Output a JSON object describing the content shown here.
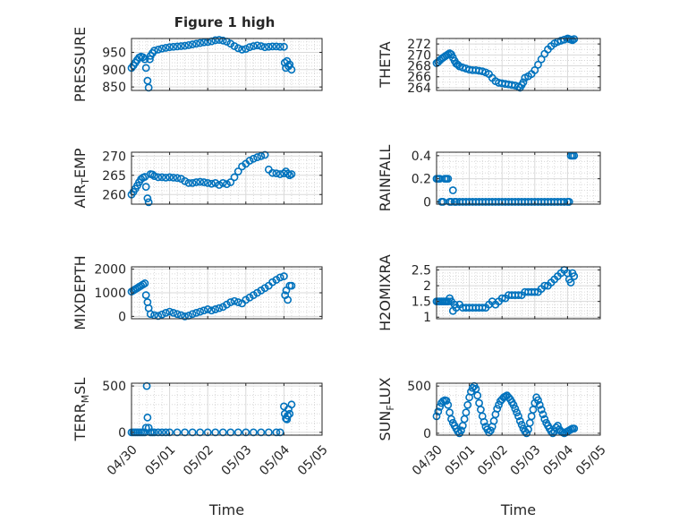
{
  "figure": {
    "title": "Figure 1 high"
  },
  "chart_data": [
    {
      "id": "pressure",
      "type": "scatter",
      "ylabel": "PRESSURE",
      "ylabel_sub": "",
      "ylim": [
        840,
        990
      ],
      "yticks": [
        850,
        900,
        950
      ],
      "yminor": [
        860,
        870,
        880,
        890,
        910,
        920,
        930,
        940,
        960,
        970,
        980
      ],
      "xlim": [
        0,
        5
      ],
      "xticks": [],
      "xlabel": "",
      "grid": true,
      "x": [
        0.0,
        0.05,
        0.1,
        0.15,
        0.2,
        0.25,
        0.3,
        0.35,
        0.38,
        0.42,
        0.45,
        0.48,
        0.5,
        0.55,
        0.6,
        0.7,
        0.8,
        0.9,
        1.0,
        1.1,
        1.2,
        1.3,
        1.4,
        1.5,
        1.6,
        1.7,
        1.8,
        1.9,
        2.0,
        2.1,
        2.2,
        2.3,
        2.4,
        2.5,
        2.6,
        2.7,
        2.8,
        2.9,
        3.0,
        3.1,
        3.2,
        3.3,
        3.4,
        3.5,
        3.6,
        3.7,
        3.8,
        3.9,
        4.0,
        4.02,
        4.05,
        4.08,
        4.12,
        4.15,
        4.2
      ],
      "y": [
        905,
        912,
        920,
        928,
        935,
        938,
        936,
        930,
        905,
        868,
        848,
        930,
        940,
        948,
        955,
        958,
        961,
        963,
        965,
        966,
        967,
        968,
        969,
        971,
        973,
        975,
        977,
        979,
        980,
        982,
        985,
        986,
        984,
        981,
        975,
        968,
        962,
        958,
        960,
        965,
        968,
        970,
        968,
        965,
        966,
        967,
        967,
        966,
        966,
        920,
        905,
        925,
        910,
        915,
        900
      ]
    },
    {
      "id": "theta",
      "type": "scatter",
      "ylabel": "THETA",
      "ylabel_sub": "",
      "ylim": [
        263.5,
        273
      ],
      "yticks": [
        264,
        266,
        268,
        270,
        272
      ],
      "yminor": [
        265,
        267,
        269,
        271
      ],
      "xlim": [
        0,
        5
      ],
      "xticks": [],
      "xlabel": "",
      "grid": true,
      "x": [
        0.0,
        0.05,
        0.1,
        0.15,
        0.2,
        0.25,
        0.3,
        0.35,
        0.4,
        0.45,
        0.5,
        0.55,
        0.6,
        0.65,
        0.7,
        0.8,
        0.9,
        1.0,
        1.1,
        1.2,
        1.3,
        1.4,
        1.5,
        1.6,
        1.7,
        1.8,
        1.9,
        2.0,
        2.1,
        2.2,
        2.3,
        2.4,
        2.5,
        2.55,
        2.6,
        2.65,
        2.7,
        2.8,
        2.9,
        3.0,
        3.1,
        3.2,
        3.3,
        3.4,
        3.5,
        3.6,
        3.7,
        3.8,
        3.9,
        4.0,
        4.05,
        4.1,
        4.15,
        4.2
      ],
      "y": [
        268.5,
        268.7,
        269,
        269.3,
        269.5,
        269.7,
        269.9,
        270.1,
        270.3,
        270.1,
        269.5,
        268.9,
        268.4,
        268.2,
        267.9,
        267.7,
        267.5,
        267.3,
        267.2,
        267.2,
        267.1,
        267,
        266.8,
        266.5,
        265.8,
        265.2,
        264.9,
        264.8,
        264.7,
        264.6,
        264.5,
        264.4,
        264.2,
        264,
        264.5,
        265,
        265.8,
        266.1,
        266.5,
        267.2,
        268.2,
        269.2,
        270.2,
        271,
        271.6,
        272.1,
        272.4,
        272.6,
        272.8,
        273,
        272.9,
        272.8,
        272.7,
        272.9
      ]
    },
    {
      "id": "air_temp",
      "type": "scatter",
      "ylabel": "AIR",
      "ylabel_sub": "T",
      "ylabel_rest": "EMP",
      "ylim": [
        257.5,
        271
      ],
      "yticks": [
        260,
        265,
        270
      ],
      "yminor": [
        261,
        262,
        263,
        264,
        266,
        267,
        268,
        269
      ],
      "xlim": [
        0,
        5
      ],
      "xticks": [],
      "xlabel": "",
      "grid": true,
      "x": [
        0.0,
        0.05,
        0.1,
        0.15,
        0.2,
        0.25,
        0.3,
        0.35,
        0.38,
        0.42,
        0.45,
        0.5,
        0.55,
        0.6,
        0.7,
        0.8,
        0.9,
        1.0,
        1.1,
        1.2,
        1.3,
        1.4,
        1.5,
        1.6,
        1.7,
        1.8,
        1.9,
        2.0,
        2.1,
        2.2,
        2.3,
        2.4,
        2.5,
        2.6,
        2.7,
        2.8,
        2.9,
        3.0,
        3.1,
        3.2,
        3.3,
        3.4,
        3.5,
        3.6,
        3.7,
        3.8,
        3.9,
        4.0,
        4.05,
        4.1,
        4.15,
        4.2
      ],
      "y": [
        260,
        260.7,
        261.5,
        262.3,
        263.2,
        264,
        264.4,
        264.6,
        262,
        259,
        258,
        265.3,
        265.2,
        264.8,
        264.5,
        264.5,
        264.4,
        264.5,
        264.4,
        264.3,
        264.1,
        263.5,
        263,
        263,
        263.2,
        263.3,
        263.2,
        263,
        262.8,
        263,
        262.5,
        263,
        262.7,
        263.2,
        264.5,
        266,
        267.3,
        268,
        268.8,
        269.3,
        269.7,
        270,
        270.3,
        266.5,
        265.6,
        265.5,
        265.3,
        265.5,
        266,
        265.4,
        265,
        265.3
      ]
    },
    {
      "id": "rainfall",
      "type": "scatter",
      "ylabel": "RAINFALL",
      "ylabel_sub": "",
      "ylim": [
        -0.02,
        0.43
      ],
      "yticks": [
        0,
        0.2,
        0.4
      ],
      "yminor": [
        0.05,
        0.1,
        0.15,
        0.25,
        0.3,
        0.35
      ],
      "xlim": [
        0,
        5
      ],
      "xticks": [],
      "xlabel": "",
      "grid": true,
      "x": [
        0.0,
        0.05,
        0.1,
        0.15,
        0.2,
        0.25,
        0.3,
        0.35,
        0.4,
        0.45,
        0.5,
        0.55,
        0.6,
        0.7,
        0.8,
        0.9,
        1.0,
        1.1,
        1.2,
        1.3,
        1.4,
        1.5,
        1.6,
        1.7,
        1.8,
        1.9,
        2.0,
        2.1,
        2.2,
        2.3,
        2.4,
        2.5,
        2.6,
        2.7,
        2.8,
        2.9,
        3.0,
        3.1,
        3.2,
        3.3,
        3.4,
        3.5,
        3.6,
        3.7,
        3.8,
        3.9,
        4.0,
        4.05,
        4.1,
        4.15,
        4.2
      ],
      "y": [
        0.2,
        0.2,
        0.2,
        0,
        0,
        0.2,
        0.2,
        0.2,
        0,
        0,
        0.1,
        0,
        0,
        0,
        0,
        0,
        0,
        0,
        0,
        0,
        0,
        0,
        0,
        0,
        0,
        0,
        0,
        0,
        0,
        0,
        0,
        0,
        0,
        0,
        0,
        0,
        0,
        0,
        0,
        0,
        0,
        0,
        0,
        0,
        0,
        0,
        0,
        0,
        0.4,
        0.4,
        0.4
      ]
    },
    {
      "id": "mixdepth",
      "type": "scatter",
      "ylabel": "MIXDEPTH",
      "ylabel_sub": "",
      "ylim": [
        -100,
        2100
      ],
      "yticks": [
        0,
        1000,
        2000
      ],
      "yminor": [
        200,
        400,
        600,
        800,
        1200,
        1400,
        1600,
        1800
      ],
      "xlim": [
        0,
        5
      ],
      "xticks": [],
      "xlabel": "",
      "grid": true,
      "x": [
        0.0,
        0.05,
        0.1,
        0.15,
        0.2,
        0.25,
        0.3,
        0.35,
        0.38,
        0.42,
        0.45,
        0.5,
        0.6,
        0.7,
        0.8,
        0.9,
        1.0,
        1.1,
        1.2,
        1.3,
        1.4,
        1.5,
        1.6,
        1.7,
        1.8,
        1.9,
        2.0,
        2.1,
        2.2,
        2.3,
        2.4,
        2.5,
        2.6,
        2.7,
        2.8,
        2.9,
        3.0,
        3.1,
        3.2,
        3.3,
        3.4,
        3.5,
        3.6,
        3.7,
        3.8,
        3.9,
        4.0,
        4.03,
        4.06,
        4.1,
        4.15,
        4.2
      ],
      "y": [
        1050,
        1100,
        1150,
        1200,
        1250,
        1300,
        1350,
        1400,
        900,
        600,
        350,
        100,
        50,
        20,
        80,
        150,
        200,
        150,
        100,
        50,
        0,
        30,
        100,
        150,
        200,
        250,
        300,
        250,
        300,
        350,
        400,
        500,
        600,
        650,
        600,
        550,
        700,
        800,
        900,
        1000,
        1100,
        1200,
        1300,
        1450,
        1550,
        1650,
        1700,
        900,
        1100,
        700,
        1300,
        1300
      ]
    },
    {
      "id": "h2omixra",
      "type": "scatter",
      "ylabel": "H2OMIXRA",
      "ylabel_sub": "",
      "ylim": [
        0.95,
        2.6
      ],
      "yticks": [
        1,
        1.5,
        2,
        2.5
      ],
      "yminor": [
        1.1,
        1.2,
        1.3,
        1.4,
        1.6,
        1.7,
        1.8,
        1.9,
        2.1,
        2.2,
        2.3,
        2.4
      ],
      "xlim": [
        0,
        5
      ],
      "xticks": [],
      "xlabel": "",
      "grid": true,
      "x": [
        0.0,
        0.05,
        0.1,
        0.15,
        0.2,
        0.25,
        0.3,
        0.35,
        0.4,
        0.45,
        0.5,
        0.55,
        0.6,
        0.7,
        0.8,
        0.9,
        1.0,
        1.1,
        1.2,
        1.3,
        1.4,
        1.5,
        1.6,
        1.7,
        1.8,
        1.9,
        2.0,
        2.1,
        2.2,
        2.3,
        2.4,
        2.5,
        2.6,
        2.7,
        2.8,
        2.9,
        3.0,
        3.1,
        3.2,
        3.3,
        3.4,
        3.5,
        3.6,
        3.7,
        3.8,
        3.9,
        4.0,
        4.05,
        4.1,
        4.15,
        4.2
      ],
      "y": [
        1.5,
        1.5,
        1.5,
        1.5,
        1.5,
        1.5,
        1.5,
        1.5,
        1.6,
        1.5,
        1.2,
        1.4,
        1.3,
        1.4,
        1.3,
        1.3,
        1.3,
        1.3,
        1.3,
        1.3,
        1.3,
        1.3,
        1.4,
        1.5,
        1.4,
        1.5,
        1.6,
        1.6,
        1.7,
        1.7,
        1.7,
        1.7,
        1.7,
        1.8,
        1.8,
        1.8,
        1.8,
        1.8,
        1.9,
        2.0,
        2.0,
        2.1,
        2.2,
        2.3,
        2.4,
        2.5,
        2.4,
        2.2,
        2.1,
        2.4,
        2.3
      ]
    },
    {
      "id": "terr_msl",
      "type": "scatter",
      "ylabel": "TERR",
      "ylabel_sub": "M",
      "ylabel_rest": "SL",
      "ylim": [
        -30,
        530
      ],
      "yticks": [
        0,
        500
      ],
      "yminor": [
        100,
        200,
        300,
        400
      ],
      "xlim": [
        0,
        5
      ],
      "xticks": [
        0,
        1,
        2,
        3,
        4,
        5
      ],
      "xticklabels": [
        "04/30",
        "05/01",
        "05/02",
        "05/03",
        "05/04",
        "05/05"
      ],
      "xlabel": "Time",
      "grid": true,
      "x": [
        0.0,
        0.05,
        0.1,
        0.15,
        0.2,
        0.25,
        0.3,
        0.35,
        0.38,
        0.4,
        0.42,
        0.45,
        0.5,
        0.55,
        0.6,
        0.7,
        0.8,
        0.9,
        1.0,
        1.2,
        1.4,
        1.6,
        1.8,
        2.0,
        2.2,
        2.4,
        2.6,
        2.8,
        3.0,
        3.2,
        3.4,
        3.6,
        3.8,
        3.9,
        4.0,
        4.02,
        4.05,
        4.08,
        4.1,
        4.12,
        4.15,
        4.2
      ],
      "y": [
        0,
        0,
        0,
        0,
        0,
        0,
        0,
        0,
        50,
        500,
        160,
        50,
        0,
        0,
        0,
        0,
        0,
        0,
        0,
        0,
        0,
        0,
        0,
        0,
        0,
        0,
        0,
        0,
        0,
        0,
        0,
        0,
        0,
        0,
        280,
        200,
        150,
        140,
        180,
        250,
        200,
        300
      ]
    },
    {
      "id": "sun_flux",
      "type": "scatter",
      "ylabel": "SUN",
      "ylabel_sub": "F",
      "ylabel_rest": "LUX",
      "ylim": [
        -20,
        530
      ],
      "yticks": [
        0,
        500
      ],
      "yminor": [
        100,
        200,
        300,
        400
      ],
      "xlim": [
        0,
        5
      ],
      "xticks": [
        0,
        1,
        2,
        3,
        4,
        5
      ],
      "xticklabels": [
        "04/30",
        "05/01",
        "05/02",
        "05/03",
        "05/04",
        "05/05"
      ],
      "xlabel": "Time",
      "grid": true,
      "x": [
        0.0,
        0.05,
        0.1,
        0.15,
        0.2,
        0.25,
        0.3,
        0.35,
        0.4,
        0.45,
        0.5,
        0.55,
        0.6,
        0.65,
        0.7,
        0.75,
        0.8,
        0.85,
        0.9,
        0.95,
        1.0,
        1.05,
        1.1,
        1.15,
        1.2,
        1.25,
        1.3,
        1.35,
        1.4,
        1.45,
        1.5,
        1.55,
        1.6,
        1.65,
        1.7,
        1.75,
        1.8,
        1.85,
        1.9,
        1.95,
        2.0,
        2.05,
        2.1,
        2.15,
        2.2,
        2.25,
        2.3,
        2.35,
        2.4,
        2.45,
        2.5,
        2.55,
        2.6,
        2.65,
        2.7,
        2.75,
        2.8,
        2.85,
        2.9,
        2.95,
        3.0,
        3.05,
        3.1,
        3.15,
        3.2,
        3.25,
        3.3,
        3.35,
        3.4,
        3.45,
        3.5,
        3.55,
        3.6,
        3.65,
        3.7,
        3.75,
        3.8,
        3.85,
        3.9,
        3.95,
        4.0,
        4.05,
        4.1,
        4.15,
        4.2
      ],
      "y": [
        180,
        230,
        280,
        320,
        340,
        350,
        345,
        300,
        220,
        150,
        110,
        80,
        50,
        20,
        0,
        30,
        80,
        150,
        220,
        300,
        380,
        440,
        480,
        500,
        470,
        400,
        320,
        250,
        180,
        120,
        70,
        40,
        10,
        30,
        70,
        130,
        200,
        260,
        300,
        340,
        360,
        380,
        390,
        400,
        380,
        360,
        330,
        300,
        260,
        220,
        180,
        130,
        90,
        50,
        20,
        0,
        40,
        110,
        180,
        250,
        320,
        380,
        350,
        300,
        250,
        200,
        150,
        110,
        80,
        50,
        20,
        0,
        20,
        60,
        80,
        40,
        20,
        10,
        0,
        10,
        20,
        30,
        40,
        50,
        50
      ]
    }
  ]
}
